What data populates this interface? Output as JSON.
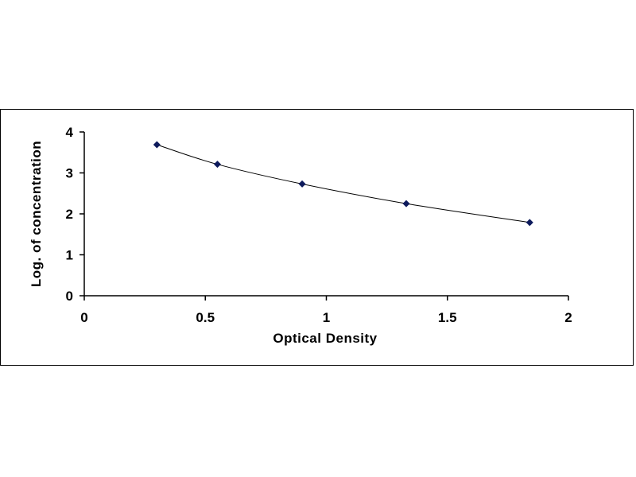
{
  "chart_data": {
    "type": "scatter",
    "title": "",
    "xlabel": "Optical Density",
    "ylabel": "Log. of concentration",
    "xlim": [
      0,
      2
    ],
    "ylim": [
      0,
      4
    ],
    "x_ticks": [
      "0",
      "0.5",
      "1",
      "1.5",
      "2"
    ],
    "y_ticks": [
      "0",
      "1",
      "2",
      "3",
      "4"
    ],
    "grid": false,
    "legend": "none",
    "series": [
      {
        "x": [
          0.3,
          0.55,
          0.9,
          1.33,
          1.84
        ],
        "y": [
          3.69,
          3.21,
          2.73,
          2.25,
          1.79
        ],
        "marker": "diamond",
        "trendline": true,
        "color": "#0d1a5c"
      }
    ]
  }
}
